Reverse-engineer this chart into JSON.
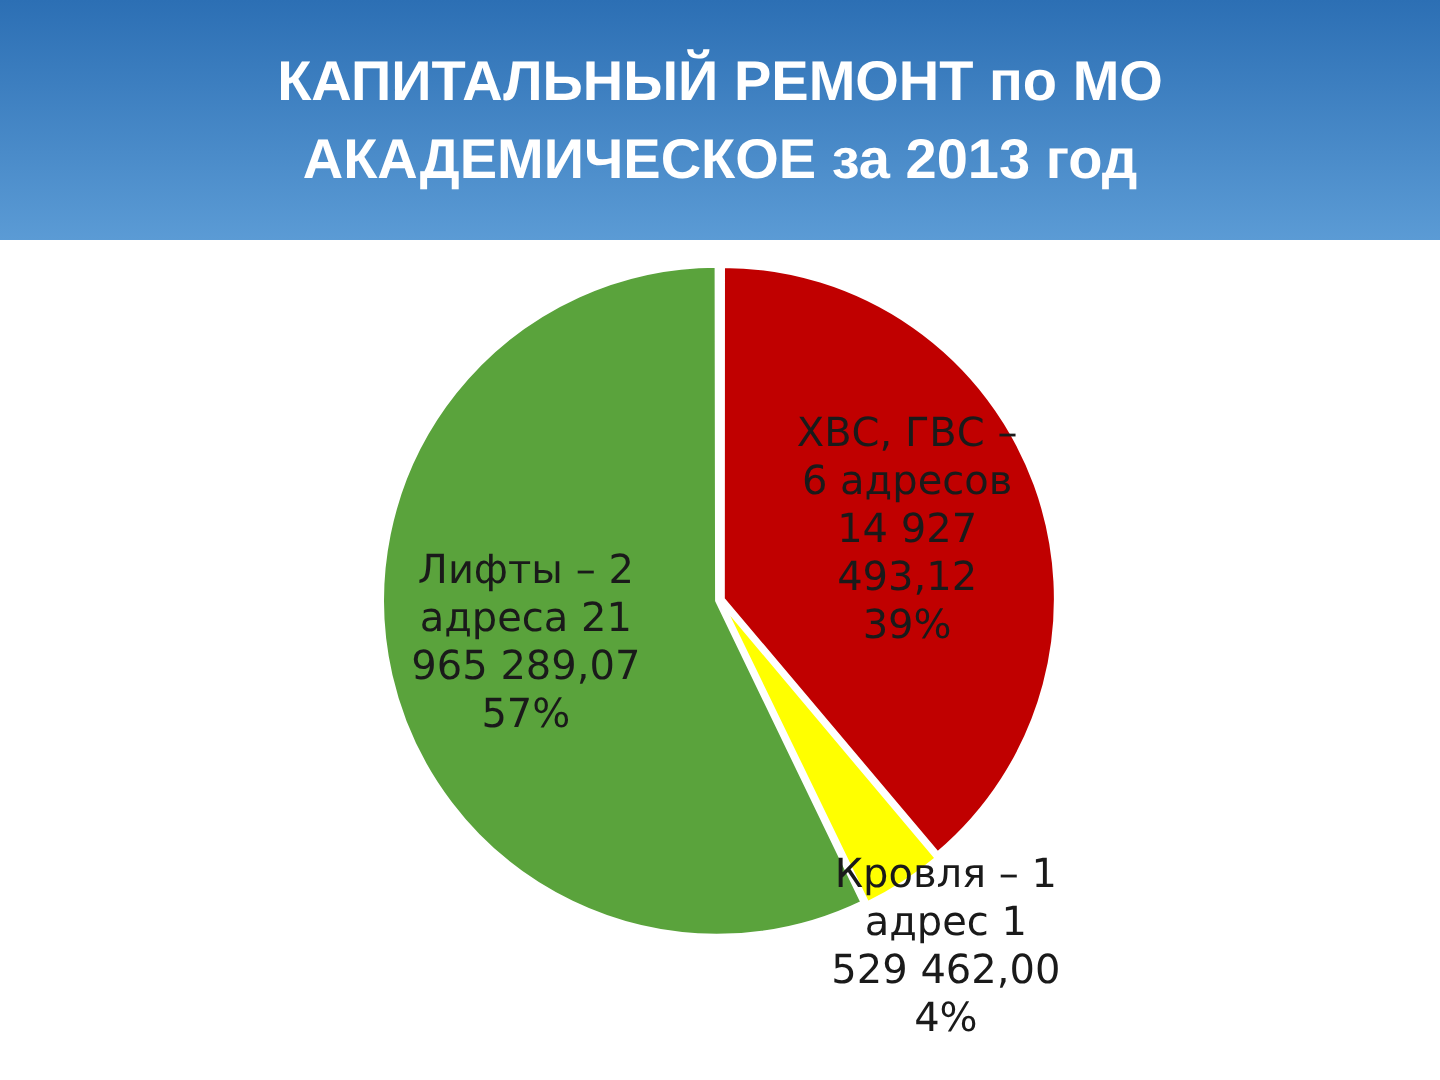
{
  "chart_data": {
    "type": "pie",
    "title": "КАПИТАЛЬНЫЙ РЕМОНТ по МО АКАДЕМИЧЕСКОЕ за 2013 год",
    "categories": [
      "ХВС, ГВС – 6 адресов",
      "Кровля – 1 адрес",
      "Лифты – 2 адреса"
    ],
    "values": [
      14927493.12,
      1529462.0,
      21965289.07
    ],
    "value_labels": [
      "14 927 493,12 39%",
      "1 529 462,00 4%",
      "21 965 289,07 57%"
    ],
    "colors": [
      "#c00000",
      "#ffff00",
      "#5aa33c"
    ],
    "legend": false
  }
}
